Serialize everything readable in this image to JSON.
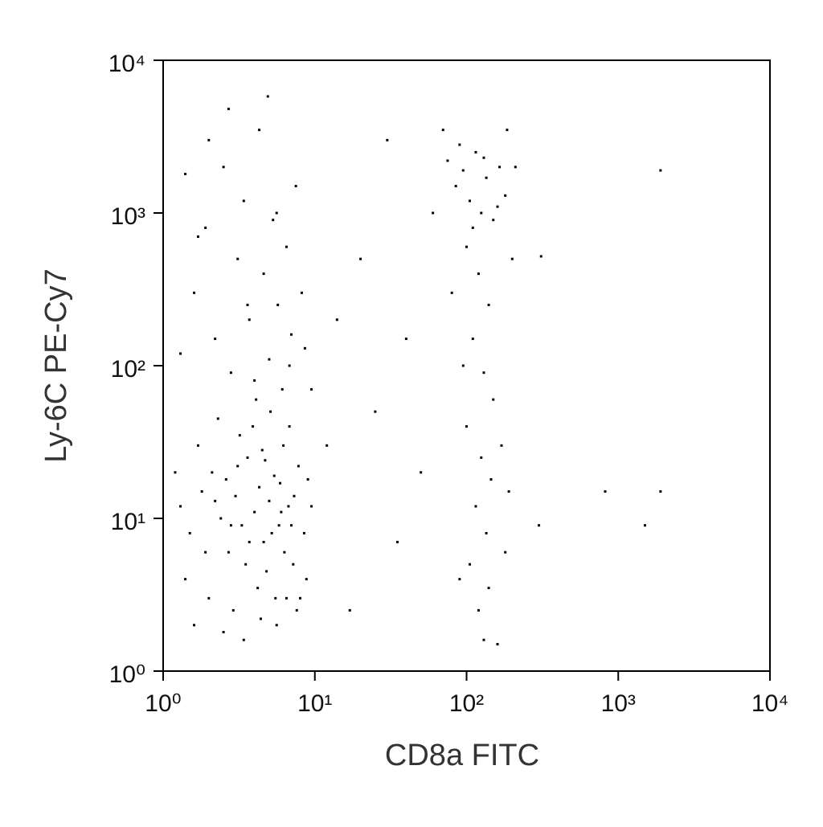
{
  "chart_data": {
    "type": "scatter",
    "xlabel": "CD8a FITC",
    "ylabel": "Ly-6C PE-Cy7",
    "xscale": "log",
    "yscale": "log",
    "color": "#000000",
    "xlim": [
      1,
      10000
    ],
    "ylim": [
      1,
      10000
    ],
    "xticks": [
      {
        "value": 1,
        "label": "10⁰"
      },
      {
        "value": 10,
        "label": "10¹"
      },
      {
        "value": 100,
        "label": "10²"
      },
      {
        "value": 1000,
        "label": "10³"
      },
      {
        "value": 10000,
        "label": "10⁴"
      }
    ],
    "yticks": [
      {
        "value": 1,
        "label": "10⁰"
      },
      {
        "value": 10,
        "label": "10¹"
      },
      {
        "value": 100,
        "label": "10²"
      },
      {
        "value": 1000,
        "label": "10³"
      },
      {
        "value": 10000,
        "label": "10⁴"
      }
    ],
    "x": [
      1.3,
      1.5,
      1.8,
      2.1,
      2.4,
      2.7,
      3.0,
      3.3,
      3.6,
      4.0,
      4.3,
      4.6,
      5.0,
      5.4,
      5.8,
      6.2,
      6.7,
      7.2,
      7.8,
      8.5,
      1.4,
      1.7,
      2.0,
      2.3,
      2.6,
      2.9,
      3.2,
      3.5,
      3.9,
      4.2,
      4.5,
      4.8,
      5.1,
      5.5,
      5.9,
      6.3,
      6.8,
      7.3,
      8.0,
      9.0,
      1.2,
      1.6,
      1.9,
      2.2,
      2.5,
      2.8,
      3.1,
      3.4,
      3.7,
      4.1,
      4.4,
      4.7,
      5.2,
      5.6,
      6.0,
      6.5,
      7.0,
      7.6,
      8.8,
      9.5,
      1.3,
      1.6,
      1.9,
      2.2,
      2.5,
      2.8,
      3.1,
      3.4,
      3.7,
      4.0,
      4.3,
      4.6,
      5.0,
      5.3,
      5.7,
      6.1,
      6.5,
      7.0,
      7.5,
      8.2,
      1.4,
      2.0,
      2.7,
      4.9,
      3.6,
      6.8,
      8.6,
      9.5,
      1.7,
      5.6,
      75,
      85,
      95,
      105,
      115,
      125,
      135,
      150,
      165,
      180,
      90,
      110,
      130,
      160,
      100,
      120,
      140,
      110,
      130,
      150,
      100,
      125,
      145,
      115,
      135,
      105,
      140,
      120,
      130,
      160,
      170,
      190,
      200,
      80,
      95,
      180,
      210,
      70,
      185,
      90,
      12,
      14,
      17,
      20,
      25,
      30,
      35,
      40,
      50,
      60,
      820,
      1900,
      1500,
      1900,
      310,
      300
    ],
    "values": [
      12,
      8,
      15,
      20,
      10,
      6,
      14,
      9,
      25,
      11,
      16,
      7,
      13,
      19,
      9,
      30,
      12,
      5,
      22,
      8,
      4,
      30,
      3,
      45,
      18,
      2.5,
      35,
      5,
      40,
      3.5,
      28,
      4.5,
      50,
      3,
      17,
      6,
      40,
      14,
      3,
      18,
      20,
      2,
      6,
      13,
      1.8,
      9,
      22,
      1.6,
      7,
      60,
      2.2,
      24,
      8,
      2,
      11,
      3,
      9,
      2.5,
      4,
      12,
      120,
      300,
      800,
      150,
      2000,
      90,
      500,
      1200,
      200,
      80,
      3500,
      400,
      110,
      900,
      250,
      70,
      600,
      160,
      1500,
      300,
      1800,
      3000,
      4800,
      5800,
      250,
      100,
      130,
      70,
      700,
      1000,
      2200,
      1500,
      1900,
      1200,
      2500,
      1000,
      1700,
      900,
      2000,
      1300,
      2800,
      800,
      2300,
      1100,
      600,
      400,
      250,
      150,
      90,
      60,
      40,
      25,
      18,
      12,
      8,
      5,
      3.5,
      2.5,
      1.6,
      1.5,
      30,
      15,
      500,
      300,
      100,
      6,
      2000,
      3500,
      3500,
      4,
      30,
      200,
      2.5,
      500,
      50,
      3000,
      7,
      150,
      20,
      1000,
      15,
      15,
      9,
      1900,
      520,
      9
    ]
  }
}
